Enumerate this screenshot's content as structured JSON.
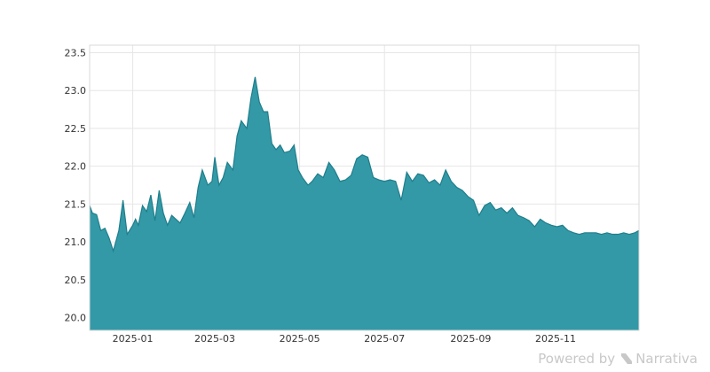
{
  "chart_data": {
    "type": "area",
    "title": "",
    "xlabel": "",
    "ylabel": "",
    "fill_color": "#3399a6",
    "line_color": "#1f7e8c",
    "grid": true,
    "x_domain": [
      "2024-12-01",
      "2025-12-31"
    ],
    "ylim": [
      19.83,
      23.6
    ],
    "y_ticks": [
      "20.0",
      "20.5",
      "21.0",
      "21.5",
      "22.0",
      "22.5",
      "23.0",
      "23.5"
    ],
    "x_ticks": [
      "2025-01",
      "2025-03",
      "2025-05",
      "2025-07",
      "2025-09",
      "2025-11"
    ],
    "x": [
      "2024-12-01",
      "2024-12-03",
      "2024-12-06",
      "2024-12-09",
      "2024-12-12",
      "2024-12-15",
      "2024-12-18",
      "2024-12-22",
      "2024-12-25",
      "2024-12-28",
      "2025-01-01",
      "2025-01-03",
      "2025-01-05",
      "2025-01-08",
      "2025-01-11",
      "2025-01-14",
      "2025-01-17",
      "2025-01-20",
      "2025-01-23",
      "2025-01-26",
      "2025-01-29",
      "2025-02-01",
      "2025-02-04",
      "2025-02-07",
      "2025-02-11",
      "2025-02-14",
      "2025-02-17",
      "2025-02-20",
      "2025-02-24",
      "2025-02-27",
      "2025-03-01",
      "2025-03-04",
      "2025-03-07",
      "2025-03-10",
      "2025-03-14",
      "2025-03-17",
      "2025-03-20",
      "2025-03-24",
      "2025-03-27",
      "2025-03-30",
      "2025-04-02",
      "2025-04-05",
      "2025-04-08",
      "2025-04-11",
      "2025-04-14",
      "2025-04-17",
      "2025-04-20",
      "2025-04-24",
      "2025-04-27",
      "2025-04-30",
      "2025-05-03",
      "2025-05-07",
      "2025-05-10",
      "2025-05-14",
      "2025-05-18",
      "2025-05-22",
      "2025-05-26",
      "2025-05-30",
      "2025-06-03",
      "2025-06-07",
      "2025-06-11",
      "2025-06-15",
      "2025-06-19",
      "2025-06-23",
      "2025-06-27",
      "2025-07-01",
      "2025-07-05",
      "2025-07-09",
      "2025-07-13",
      "2025-07-17",
      "2025-07-21",
      "2025-07-25",
      "2025-07-29",
      "2025-08-02",
      "2025-08-06",
      "2025-08-10",
      "2025-08-14",
      "2025-08-18",
      "2025-08-22",
      "2025-08-26",
      "2025-08-30",
      "2025-09-03",
      "2025-09-07",
      "2025-09-11",
      "2025-09-15",
      "2025-09-19",
      "2025-09-23",
      "2025-09-27",
      "2025-10-01",
      "2025-10-05",
      "2025-10-09",
      "2025-10-13",
      "2025-10-17",
      "2025-10-21",
      "2025-10-25",
      "2025-10-29",
      "2025-11-02",
      "2025-11-06",
      "2025-11-10",
      "2025-11-14",
      "2025-11-18",
      "2025-11-22",
      "2025-11-26",
      "2025-11-30",
      "2025-12-04",
      "2025-12-08",
      "2025-12-12",
      "2025-12-16",
      "2025-12-20",
      "2025-12-24",
      "2025-12-28",
      "2025-12-31"
    ],
    "y": [
      21.48,
      21.38,
      21.36,
      21.15,
      21.18,
      21.05,
      20.88,
      21.15,
      21.55,
      21.1,
      21.22,
      21.3,
      21.22,
      21.48,
      21.4,
      21.62,
      21.28,
      21.68,
      21.38,
      21.22,
      21.35,
      21.3,
      21.25,
      21.36,
      21.52,
      21.32,
      21.72,
      21.95,
      21.75,
      21.8,
      22.12,
      21.75,
      21.85,
      22.05,
      21.95,
      22.4,
      22.6,
      22.5,
      22.9,
      23.18,
      22.85,
      22.72,
      22.72,
      22.3,
      22.22,
      22.28,
      22.18,
      22.2,
      22.28,
      21.95,
      21.85,
      21.75,
      21.8,
      21.9,
      21.85,
      22.05,
      21.95,
      21.8,
      21.82,
      21.88,
      22.1,
      22.15,
      22.12,
      21.85,
      21.82,
      21.8,
      21.82,
      21.8,
      21.55,
      21.92,
      21.8,
      21.9,
      21.88,
      21.78,
      21.82,
      21.75,
      21.95,
      21.8,
      21.72,
      21.68,
      21.6,
      21.55,
      21.35,
      21.48,
      21.52,
      21.42,
      21.45,
      21.38,
      21.45,
      21.35,
      21.32,
      21.28,
      21.2,
      21.3,
      21.25,
      21.22,
      21.2,
      21.22,
      21.15,
      21.12,
      21.1,
      21.12,
      21.12,
      21.12,
      21.1,
      21.12,
      21.1,
      21.1,
      21.12,
      21.1,
      21.12,
      21.15
    ]
  },
  "watermark": {
    "powered_by": "Powered by",
    "brand": "Narrativa"
  }
}
